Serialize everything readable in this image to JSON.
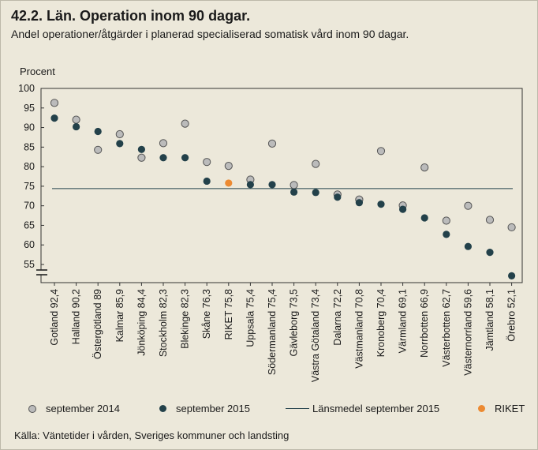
{
  "title": "42.2. Län. Operation inom 90 dagar.",
  "subtitle": "Andel operationer/åtgärder i planerad specialiserad somatisk vård inom 90 dagar.",
  "source": "Källa: Väntetider i vården, Sveriges kommuner och landsting",
  "legend": {
    "sep2014": "september 2014",
    "sep2015": "september 2015",
    "mean": "Länsmedel september 2015",
    "riket": "RIKET"
  },
  "colors": {
    "sep2014": "#bbbbbb",
    "sep2015": "#23414a",
    "riket": "#ec8a32",
    "mean_line": "#23414a"
  },
  "chart_data": {
    "type": "scatter",
    "ylabel": "Procent",
    "yticks": [
      55,
      60,
      65,
      70,
      75,
      80,
      85,
      90,
      95,
      100
    ],
    "ylim": [
      52,
      100
    ],
    "axis_break": true,
    "mean_line": 74.4,
    "categories": [
      {
        "name": "Gotland",
        "label": "92,4",
        "v2014": 96.3,
        "v2015": 92.4
      },
      {
        "name": "Halland",
        "label": "90,2",
        "v2014": 92.0,
        "v2015": 90.2
      },
      {
        "name": "Östergötland",
        "label": "89",
        "v2014": 84.3,
        "v2015": 89.0
      },
      {
        "name": "Kalmar",
        "label": "85,9",
        "v2014": 88.3,
        "v2015": 85.9
      },
      {
        "name": "Jönköping",
        "label": "84,4",
        "v2014": 82.3,
        "v2015": 84.4
      },
      {
        "name": "Stockholm",
        "label": "82,3",
        "v2014": 86.0,
        "v2015": 82.3
      },
      {
        "name": "Blekinge",
        "label": "82,3",
        "v2014": 91.0,
        "v2015": 82.3
      },
      {
        "name": "Skåne",
        "label": "76,3",
        "v2014": 81.2,
        "v2015": 76.3
      },
      {
        "name": "RIKET",
        "label": "75,8",
        "v2014": 80.2,
        "v2015": 75.8,
        "riket": true
      },
      {
        "name": "Uppsala",
        "label": "75,4",
        "v2014": 76.7,
        "v2015": 75.4
      },
      {
        "name": "Södermanland",
        "label": "75,4",
        "v2014": 85.9,
        "v2015": 75.4
      },
      {
        "name": "Gävleborg",
        "label": "73,5",
        "v2014": 75.3,
        "v2015": 73.5
      },
      {
        "name": "Västra Götaland",
        "label": "73,4",
        "v2014": 80.7,
        "v2015": 73.4
      },
      {
        "name": "Dalarna",
        "label": "72,2",
        "v2014": 72.9,
        "v2015": 72.2
      },
      {
        "name": "Västmanland",
        "label": "70,8",
        "v2014": 71.6,
        "v2015": 70.8
      },
      {
        "name": "Kronoberg",
        "label": "70,4",
        "v2014": 84.0,
        "v2015": 70.4
      },
      {
        "name": "Värmland",
        "label": "69,1",
        "v2014": 70.1,
        "v2015": 69.1
      },
      {
        "name": "Norrbotten",
        "label": "66,9",
        "v2014": 79.8,
        "v2015": 66.9
      },
      {
        "name": "Västerbotten",
        "label": "62,7",
        "v2014": 66.2,
        "v2015": 62.7
      },
      {
        "name": "Västernorrland",
        "label": "59,6",
        "v2014": 70.0,
        "v2015": 59.6
      },
      {
        "name": "Jämtland",
        "label": "58,1",
        "v2014": 66.4,
        "v2015": 58.1
      },
      {
        "name": "Örebro",
        "label": "52,1",
        "v2014": 64.5,
        "v2015": 52.1
      }
    ]
  }
}
